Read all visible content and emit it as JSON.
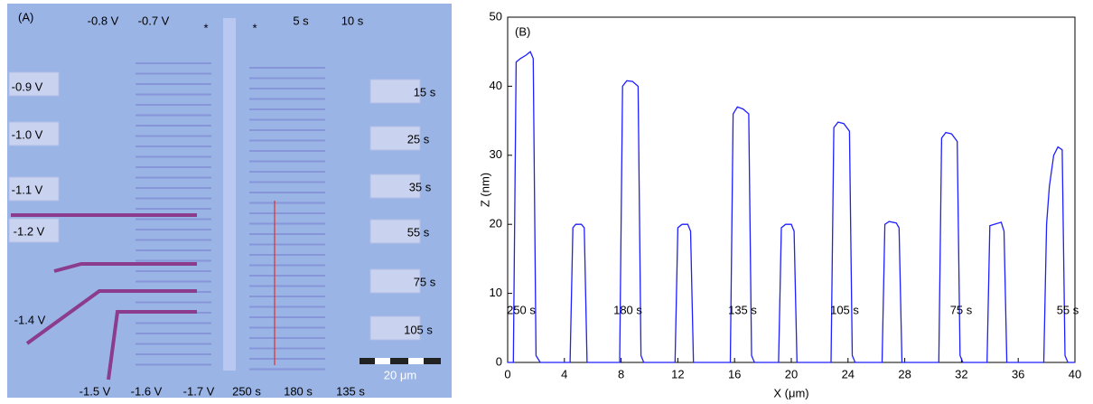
{
  "panel_a": {
    "label": "(A)",
    "labels": [
      "-0.8 V",
      "-0.7 V",
      "*",
      "*",
      "5 s",
      "10 s",
      "-0.9 V",
      "15 s",
      "-1.0 V",
      "25 s",
      "-1.1 V",
      "35 s",
      "-1.2 V",
      "55 s",
      "75 s",
      "-1.4 V",
      "105 s",
      "-1.5 V",
      "-1.6 V",
      "-1.7 V",
      "250 s",
      "180 s",
      "135 s"
    ],
    "scale_bar": "20 μm"
  },
  "chart_data": {
    "type": "line",
    "panel_label": "(B)",
    "x_label": "X (μm)",
    "y_label": "Z (nm)",
    "x": [
      0,
      0.4,
      0.6,
      0.9,
      1.3,
      1.6,
      1.8,
      2.0,
      2.3,
      4.4,
      4.6,
      4.8,
      5.2,
      5.4,
      5.6,
      7.9,
      8.1,
      8.4,
      8.8,
      9.2,
      9.4,
      9.6,
      11.8,
      12.0,
      12.3,
      12.7,
      12.9,
      13.1,
      15.7,
      15.9,
      16.2,
      16.6,
      17.0,
      17.2,
      17.4,
      19.1,
      19.3,
      19.6,
      20.0,
      20.2,
      20.4,
      22.8,
      23.0,
      23.3,
      23.7,
      24.1,
      24.3,
      24.5,
      26.4,
      26.6,
      26.9,
      27.4,
      27.6,
      27.8,
      30.4,
      30.6,
      30.9,
      31.3,
      31.7,
      31.9,
      32.1,
      33.8,
      34.0,
      34.3,
      34.8,
      35.0,
      35.2,
      37.8,
      38.0,
      38.2,
      38.5,
      38.8,
      39.1,
      39.3,
      39.5,
      40
    ],
    "series": [
      {
        "name": "profile",
        "color": "#1f1fff",
        "values": [
          0,
          0,
          43.5,
          44,
          44.5,
          45,
          44,
          1,
          0,
          0,
          19.5,
          20,
          20,
          19.5,
          0,
          0,
          40,
          40.8,
          40.7,
          40,
          1,
          0,
          0,
          19.5,
          20,
          20,
          19,
          0,
          0,
          36,
          37,
          36.7,
          36,
          1,
          0,
          0,
          19.5,
          20,
          20,
          19,
          0,
          0,
          34,
          34.8,
          34.6,
          33.5,
          1,
          0,
          0,
          20,
          20.4,
          20.2,
          19.5,
          0,
          0,
          32.5,
          33.3,
          33.1,
          32,
          1,
          0,
          0,
          19.8,
          20,
          20.3,
          19,
          0,
          0,
          20,
          25.5,
          30,
          31.2,
          30.8,
          1,
          0,
          0
        ]
      }
    ],
    "annotations": [
      "250 s",
      "180 s",
      "135 s",
      "105 s",
      "75 s",
      "55 s"
    ],
    "xlim": [
      0,
      40
    ],
    "xticks": [
      0,
      4,
      8,
      12,
      16,
      20,
      24,
      28,
      32,
      36,
      40
    ],
    "ylim": [
      0,
      50
    ],
    "yticks": [
      0,
      10,
      20,
      30,
      40,
      50
    ]
  }
}
